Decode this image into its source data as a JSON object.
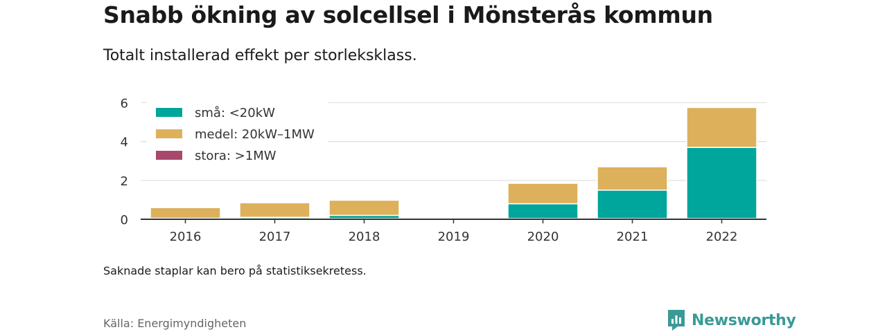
{
  "header": {
    "title": "Snabb ökning av solcellsel i Mönsterås kommun",
    "subtitle": "Totalt installerad effekt per storleksklass."
  },
  "footer": {
    "note": "Saknade staplar kan bero på statistiksekretess.",
    "source": "Källa: Energimyndigheten",
    "brand": "Newsworthy"
  },
  "colors": {
    "small": "#00a69b",
    "medium": "#ddb05c",
    "large": "#a9486c",
    "brand": "#3a9a96"
  },
  "chart_data": {
    "type": "bar",
    "stacked": true,
    "categories": [
      "2016",
      "2017",
      "2018",
      "2019",
      "2020",
      "2021",
      "2022"
    ],
    "series": [
      {
        "name": "små: <20kW",
        "color": "#00a69b",
        "values": [
          0.05,
          0.1,
          0.2,
          0,
          0.8,
          1.5,
          3.7
        ]
      },
      {
        "name": "medel: 20kW–1MW",
        "color": "#ddb05c",
        "values": [
          0.55,
          0.75,
          0.78,
          0,
          1.05,
          1.2,
          2.05
        ]
      },
      {
        "name": "stora: >1MW",
        "color": "#a9486c",
        "values": [
          0,
          0,
          0,
          0,
          0,
          0,
          0
        ]
      }
    ],
    "yticks": [
      0,
      2,
      4,
      6
    ],
    "ylim": [
      0,
      6.3
    ],
    "grid": true,
    "legend": "top-left"
  }
}
